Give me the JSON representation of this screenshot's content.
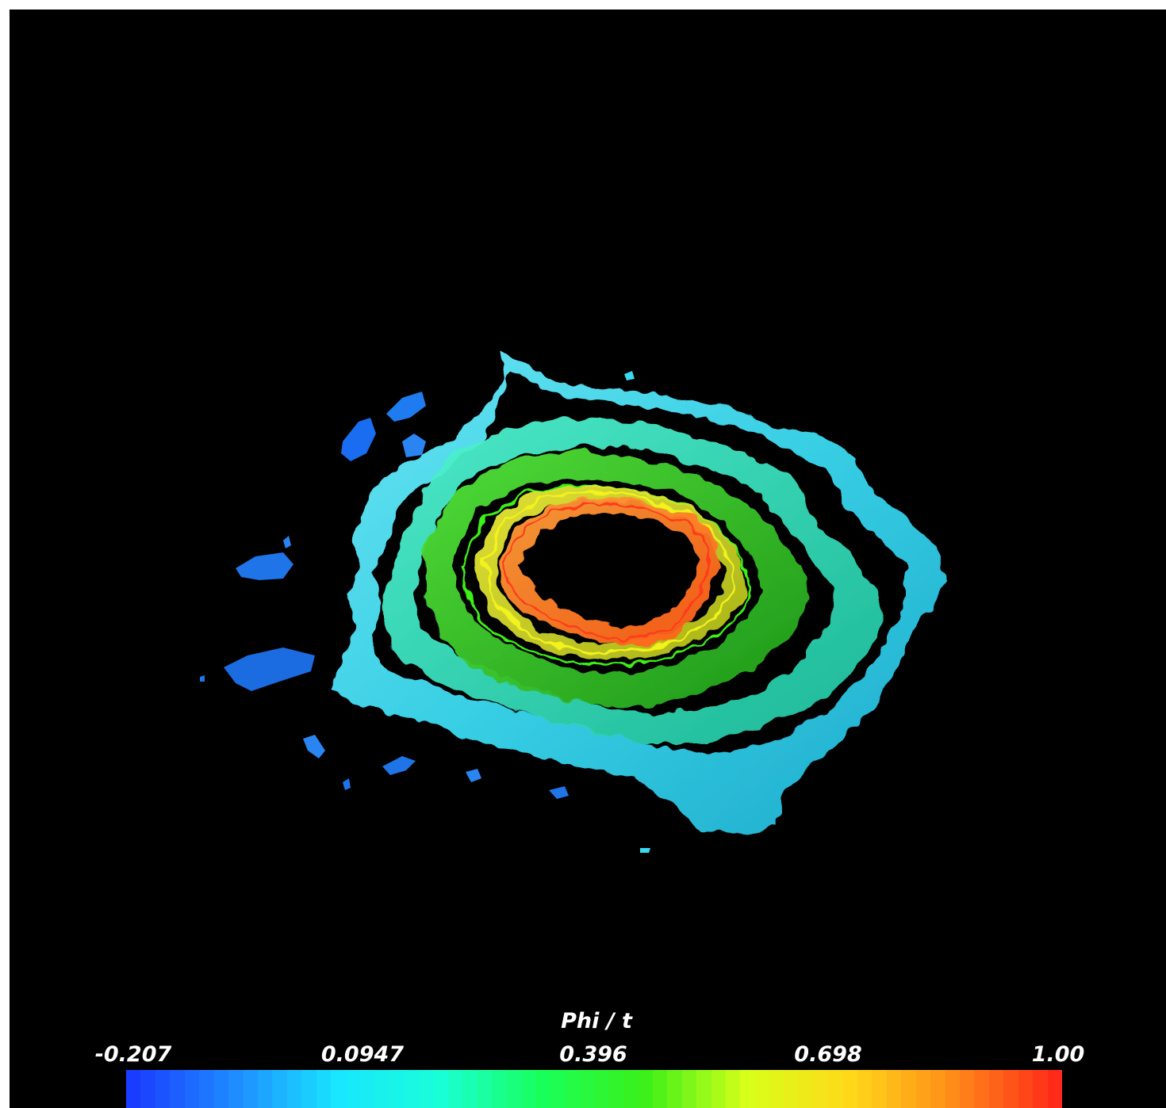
{
  "colorbar": {
    "title": "Phi / t",
    "ticks": [
      "-0.207",
      "0.0947",
      "0.396",
      "0.698",
      "1.00"
    ],
    "min": -0.207,
    "max": 1.0,
    "stops": [
      "#1a3cff",
      "#1f8cff",
      "#19e6ff",
      "#19ffd6",
      "#19ff5a",
      "#3cf019",
      "#d8ff19",
      "#ffd919",
      "#ff8c19",
      "#ff2a19"
    ]
  },
  "colors": {
    "background": "#000000",
    "blue": "#1a6cf0",
    "cyan": "#3ad9f0",
    "teal": "#2ee6c2",
    "green": "#2fcf2a",
    "lime": "#8fe81e",
    "yellow": "#e8e81a",
    "orange": "#ff8a1a",
    "red": "#ff3a1a"
  }
}
